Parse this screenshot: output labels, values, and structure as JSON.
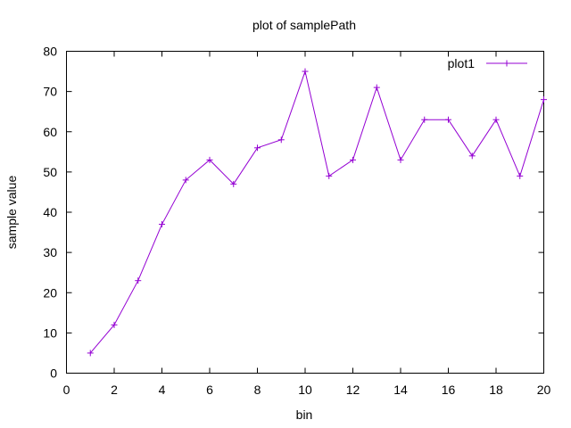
{
  "chart_data": {
    "type": "line",
    "title": "plot of samplePath",
    "xlabel": "bin",
    "ylabel": "sample value",
    "xlim": [
      0,
      20
    ],
    "ylim": [
      0,
      80
    ],
    "xticks": [
      0,
      2,
      4,
      6,
      8,
      10,
      12,
      14,
      16,
      18,
      20
    ],
    "yticks": [
      0,
      10,
      20,
      30,
      40,
      50,
      60,
      70,
      80
    ],
    "grid": false,
    "legend_position": "top-right",
    "series": [
      {
        "name": "plot1",
        "color": "#9400d3",
        "marker": "plus",
        "x": [
          1,
          2,
          3,
          4,
          5,
          6,
          7,
          8,
          9,
          10,
          11,
          12,
          13,
          14,
          15,
          16,
          17,
          18,
          19,
          20
        ],
        "y": [
          5,
          12,
          23,
          37,
          48,
          53,
          47,
          56,
          58,
          75,
          49,
          53,
          71,
          53,
          63,
          63,
          54,
          63,
          49,
          68
        ]
      }
    ]
  }
}
